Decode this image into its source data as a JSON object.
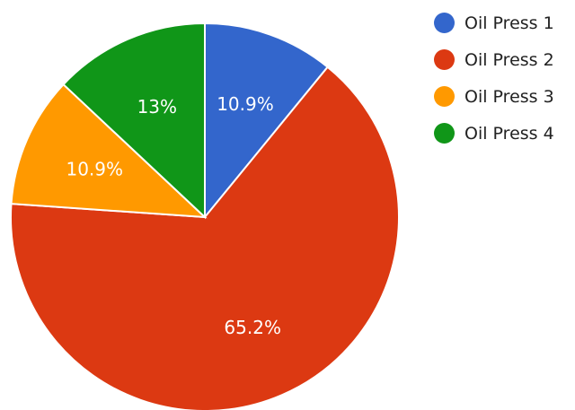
{
  "chart_data": {
    "type": "pie",
    "categories": [
      "Oil Press 1",
      "Oil Press 2",
      "Oil Press 3",
      "Oil Press 4"
    ],
    "values": [
      10.9,
      65.2,
      10.9,
      13
    ],
    "labels": [
      "10.9%",
      "65.2%",
      "10.9%",
      "13%"
    ],
    "colors": [
      "#3366cc",
      "#dc3912",
      "#ff9900",
      "#109618"
    ],
    "legend_position": "right",
    "start_angle": "top, clockwise"
  },
  "legend": {
    "items": [
      {
        "label": "Oil Press 1",
        "color": "#3366cc"
      },
      {
        "label": "Oil Press 2",
        "color": "#dc3912"
      },
      {
        "label": "Oil Press 3",
        "color": "#ff9900"
      },
      {
        "label": "Oil Press 4",
        "color": "#109618"
      }
    ]
  }
}
